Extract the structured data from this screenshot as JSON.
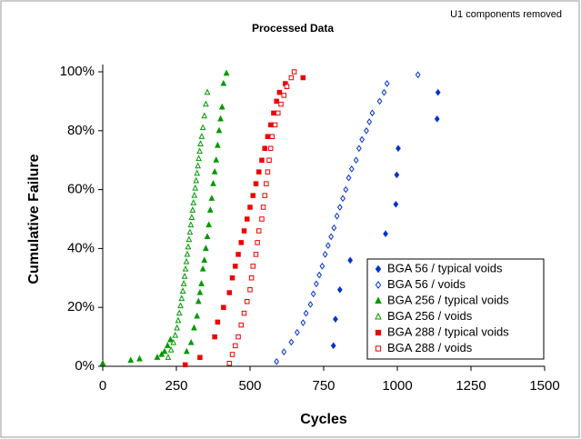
{
  "chart_data": {
    "type": "scatter",
    "title": "Processed Data",
    "annotation": "U1 components removed",
    "x_label": "Cycles",
    "y_label": "Cumulative Failure",
    "xlim": [
      0,
      1500
    ],
    "xticks": [
      0,
      250,
      500,
      750,
      1000,
      1250,
      1500
    ],
    "ylim": [
      0,
      100
    ],
    "yticks": [
      {
        "value": 0,
        "label": "0%"
      },
      {
        "value": 20,
        "label": "20%"
      },
      {
        "value": 40,
        "label": "40%"
      },
      {
        "value": 60,
        "label": "60%"
      },
      {
        "value": 80,
        "label": "80%"
      },
      {
        "value": 100,
        "label": "100%"
      }
    ],
    "legend": "lower right",
    "series": [
      {
        "name": "BGA 56 / typical voids",
        "color": "#0033cc",
        "marker": "diamond",
        "filled": true,
        "x": [
          783,
          790,
          805,
          840,
          960,
          995,
          998,
          1003,
          1135,
          1138
        ],
        "values": [
          7,
          16,
          26,
          36,
          45,
          55,
          65,
          74,
          84,
          93
        ]
      },
      {
        "name": "BGA 56 / voids",
        "color": "#0033cc",
        "marker": "diamond",
        "filled": false,
        "x": [
          590,
          615,
          640,
          660,
          680,
          690,
          705,
          715,
          725,
          735,
          745,
          755,
          765,
          775,
          785,
          795,
          805,
          815,
          825,
          835,
          845,
          860,
          870,
          880,
          895,
          905,
          915,
          940,
          955,
          965,
          1070
        ],
        "values": [
          1.6,
          4.9,
          8.2,
          11.5,
          14.8,
          18,
          21,
          24.6,
          28,
          31,
          34,
          38,
          41,
          44,
          47,
          51,
          54,
          57,
          60,
          64,
          67,
          70,
          74,
          77,
          80,
          83,
          86,
          90,
          93,
          96,
          99
        ]
      },
      {
        "name": "BGA 256 / typical voids",
        "color": "#009900",
        "marker": "triangle",
        "filled": true,
        "x": [
          0,
          95,
          125,
          185,
          200,
          210,
          220,
          230,
          285,
          300,
          310,
          320,
          325,
          330,
          335,
          340,
          345,
          350,
          355,
          360,
          365,
          370,
          375,
          380,
          385,
          390,
          395,
          400,
          405,
          410,
          420
        ],
        "values": [
          1,
          2,
          2.5,
          3,
          4,
          5,
          7,
          9,
          5,
          8,
          13,
          17,
          22,
          25,
          28,
          33,
          36,
          40,
          44,
          48,
          53,
          57,
          62,
          66,
          70,
          75,
          80,
          84,
          88,
          96,
          99.5
        ]
      },
      {
        "name": "BGA 256 / voids",
        "color": "#009900",
        "marker": "triangle",
        "filled": false,
        "x": [
          222,
          232,
          240,
          246,
          252,
          256,
          260,
          264,
          268,
          272,
          275,
          278,
          281,
          284,
          287,
          290,
          293,
          296,
          299,
          302,
          305,
          308,
          311,
          314,
          317,
          320,
          323,
          326,
          329,
          332,
          336,
          340,
          345,
          350,
          355
        ],
        "values": [
          3,
          5.5,
          8,
          10.5,
          13,
          15.5,
          18,
          20.5,
          23,
          25.5,
          28,
          30.5,
          33,
          35.5,
          38,
          40.5,
          43,
          45.5,
          48,
          50.5,
          53,
          55.5,
          58,
          60.5,
          63,
          65.5,
          68,
          70.5,
          73,
          75.5,
          78,
          81,
          85,
          89,
          93
        ]
      },
      {
        "name": "BGA 288 / typical voids",
        "color": "#ee0000",
        "marker": "square",
        "filled": true,
        "x": [
          280,
          330,
          380,
          390,
          410,
          430,
          440,
          450,
          460,
          470,
          480,
          490,
          500,
          510,
          520,
          530,
          540,
          550,
          560,
          570,
          580,
          590,
          600,
          620,
          680
        ],
        "values": [
          0.5,
          3,
          10,
          15,
          20,
          25,
          30,
          34,
          38,
          42,
          46,
          50,
          54,
          58,
          62,
          66,
          70,
          74,
          78,
          82,
          86,
          90,
          93,
          96,
          98
        ]
      },
      {
        "name": "BGA 288 / voids",
        "color": "#ee0000",
        "marker": "square",
        "filled": false,
        "x": [
          430,
          440,
          450,
          460,
          470,
          480,
          490,
          500,
          505,
          510,
          520,
          525,
          530,
          540,
          545,
          550,
          555,
          560,
          565,
          570,
          575,
          585,
          595,
          605,
          615,
          625,
          640,
          650
        ],
        "values": [
          1,
          4,
          7,
          10,
          14,
          18,
          22,
          26,
          30,
          34,
          38,
          42,
          46,
          50,
          54,
          58,
          62,
          66,
          70,
          74,
          78,
          82,
          86,
          89,
          92,
          95,
          98,
          100
        ]
      }
    ]
  }
}
